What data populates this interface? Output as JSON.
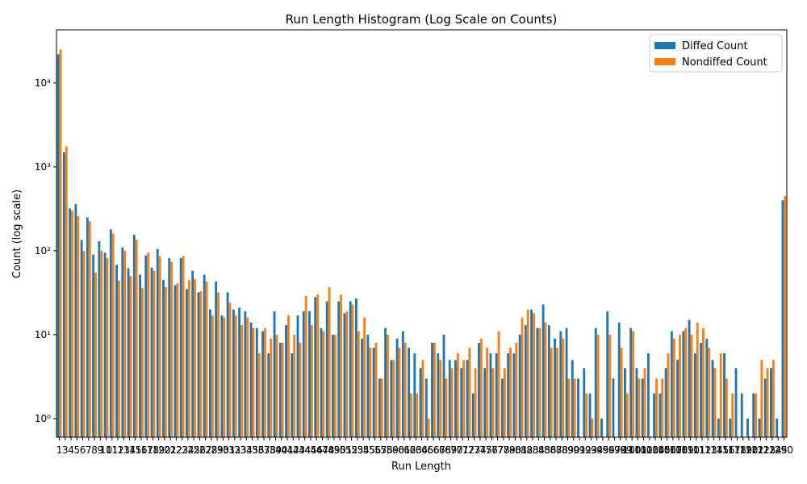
{
  "chart_data": {
    "type": "bar",
    "title": "Run Length Histogram (Log Scale on Counts)",
    "x_label": "Run Length",
    "y_label": "Count (log scale)",
    "log_y": true,
    "legend": "upper right",
    "categories": [
      "1",
      "3",
      "4",
      "5",
      "6",
      "7",
      "8",
      "9",
      "10",
      "11",
      "12",
      "13",
      "14",
      "15",
      "16",
      "17",
      "18",
      "19",
      "20",
      "21",
      "22",
      "23",
      "24",
      "25",
      "26",
      "27",
      "28",
      "29",
      "30",
      "31",
      "32",
      "33",
      "34",
      "35",
      "36",
      "37",
      "38",
      "39",
      "40",
      "41",
      "42",
      "43",
      "44",
      "45",
      "46",
      "47",
      "48",
      "49",
      "50",
      "51",
      "52",
      "53",
      "54",
      "55",
      "56",
      "57",
      "58",
      "59",
      "60",
      "61",
      "62",
      "63",
      "64",
      "65",
      "66",
      "67",
      "68",
      "69",
      "70",
      "71",
      "72",
      "73",
      "74",
      "75",
      "76",
      "77",
      "78",
      "79",
      "80",
      "81",
      "82",
      "83",
      "84",
      "85",
      "86",
      "87",
      "88",
      "89",
      "90",
      "91",
      "92",
      "93",
      "94",
      "95",
      "96",
      "97",
      "98",
      "99",
      "100",
      "101",
      "102",
      "103",
      "104",
      "105",
      "106",
      "107",
      "108",
      "109",
      "110",
      "111",
      "112",
      "113",
      "114",
      "115",
      "116",
      "117",
      "118",
      "119",
      "120",
      "121",
      "122",
      "123",
      "124",
      "125",
      "290"
    ],
    "series": [
      {
        "name": "Diffed Count",
        "color": "#1f77b4",
        "values": [
          22000,
          1500,
          320,
          360,
          135,
          250,
          90,
          130,
          95,
          180,
          68,
          110,
          62,
          155,
          52,
          88,
          63,
          105,
          45,
          82,
          39,
          82,
          35,
          58,
          32,
          52,
          20,
          43,
          17,
          32,
          20,
          21,
          19,
          14,
          12,
          11,
          6,
          19,
          8,
          13,
          6,
          17,
          19,
          19,
          28,
          12,
          25,
          10,
          25,
          18,
          25,
          27,
          9,
          10,
          7,
          3,
          12,
          5,
          9,
          11,
          7,
          6,
          4,
          3,
          8,
          6,
          10,
          5,
          5,
          4,
          5,
          2,
          8,
          4,
          6,
          6,
          3,
          6,
          6,
          10,
          13,
          20,
          12,
          23,
          13,
          9,
          11,
          12,
          5,
          3,
          4,
          2,
          12,
          1,
          19,
          3,
          14,
          4,
          12,
          4,
          3,
          6,
          2,
          2,
          4,
          11,
          5,
          11,
          15,
          6,
          8,
          9,
          5,
          1,
          6,
          1,
          4,
          2,
          1,
          2,
          1,
          3,
          4,
          1,
          400
        ]
      },
      {
        "name": "Nondiffed Count",
        "color": "#ff7f0e",
        "values": [
          25000,
          1750,
          300,
          260,
          100,
          225,
          55,
          100,
          82,
          160,
          44,
          100,
          50,
          135,
          36,
          95,
          58,
          86,
          37,
          74,
          41,
          87,
          45,
          46,
          33,
          43,
          17,
          32,
          16,
          24,
          17,
          13,
          16,
          12,
          6,
          12,
          9,
          10,
          8,
          17,
          10,
          8,
          29,
          13,
          30,
          11,
          37,
          10,
          30,
          19,
          23,
          11,
          16,
          7,
          8,
          3,
          10,
          5,
          7,
          8,
          2,
          2,
          5,
          1,
          8,
          5,
          3,
          4,
          6,
          5,
          7,
          4,
          9,
          7,
          4,
          11,
          4,
          7,
          8,
          16,
          20,
          18,
          12,
          14,
          7,
          7,
          9,
          3,
          3,
          0,
          2,
          1,
          10,
          0,
          10,
          0,
          7,
          2,
          11,
          3,
          4,
          0,
          3,
          3,
          6,
          9,
          10,
          12,
          10,
          14,
          12,
          7,
          4,
          6,
          3,
          2,
          0,
          0,
          0,
          2,
          5,
          4,
          5,
          0,
          450
        ]
      }
    ],
    "ylim": [
      0.6,
      43000
    ],
    "yticks": [
      {
        "value": 1,
        "label": "10⁰"
      },
      {
        "value": 10,
        "label": "10¹"
      },
      {
        "value": 100,
        "label": "10²"
      },
      {
        "value": 1000,
        "label": "10³"
      },
      {
        "value": 10000,
        "label": "10⁴"
      }
    ]
  }
}
